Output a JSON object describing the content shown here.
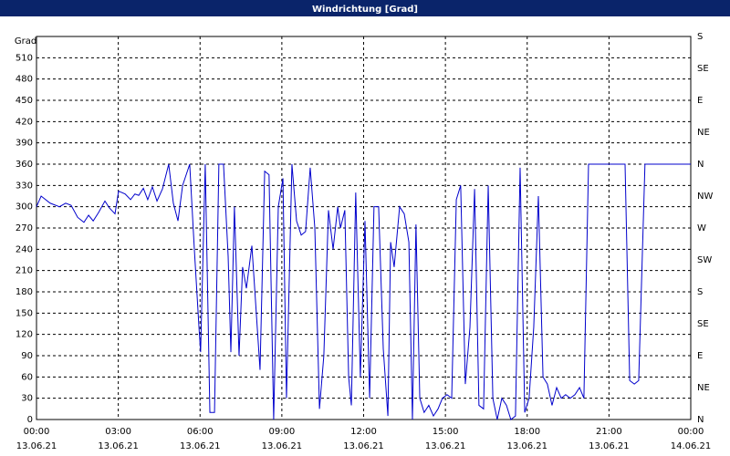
{
  "chart_data": {
    "type": "line",
    "title": "Windrichtung [Grad]",
    "y_label": "Grad",
    "x": [
      0,
      0.17,
      0.5,
      0.84,
      1.07,
      1.27,
      1.51,
      1.74,
      1.91,
      2.08,
      2.28,
      2.51,
      2.68,
      2.88,
      3.01,
      3.25,
      3.45,
      3.61,
      3.75,
      3.92,
      4.08,
      4.25,
      4.42,
      4.62,
      4.85,
      5.02,
      5.19,
      5.36,
      5.62,
      5.79,
      5.96,
      6.02,
      6.19,
      6.36,
      6.53,
      6.69,
      6.86,
      7.03,
      7.13,
      7.26,
      7.43,
      7.56,
      7.7,
      7.9,
      8.2,
      8.37,
      8.53,
      8.7,
      8.87,
      9.04,
      9.17,
      9.37,
      9.54,
      9.71,
      9.87,
      10.04,
      10.21,
      10.38,
      10.54,
      10.71,
      10.88,
      11.05,
      11.15,
      11.31,
      11.45,
      11.55,
      11.71,
      11.88,
      12.05,
      12.22,
      12.38,
      12.55,
      12.72,
      12.89,
      12.99,
      13.12,
      13.32,
      13.49,
      13.66,
      13.79,
      13.92,
      14.06,
      14.22,
      14.39,
      14.56,
      14.73,
      14.89,
      15.06,
      15.23,
      15.4,
      15.56,
      15.73,
      15.9,
      16.07,
      16.23,
      16.4,
      16.57,
      16.74,
      16.9,
      17.07,
      17.24,
      17.4,
      17.57,
      17.74,
      17.91,
      18.07,
      18.24,
      18.41,
      18.58,
      18.74,
      18.91,
      19.08,
      19.25,
      19.41,
      19.58,
      19.75,
      19.92,
      20.08,
      20.25,
      21.59,
      21.76,
      21.93,
      22.09,
      22.32,
      24.0
    ],
    "series": [
      {
        "color": "#0000cc",
        "values": [
          300,
          315,
          305,
          300,
          305,
          302,
          285,
          278,
          288,
          280,
          292,
          308,
          298,
          290,
          322,
          318,
          310,
          318,
          316,
          326,
          310,
          328,
          308,
          325,
          360,
          305,
          280,
          330,
          360,
          240,
          130,
          95,
          360,
          10,
          10,
          360,
          360,
          230,
          95,
          300,
          90,
          215,
          185,
          245,
          70,
          350,
          345,
          0,
          300,
          340,
          30,
          360,
          280,
          260,
          265,
          355,
          270,
          15,
          90,
          295,
          240,
          300,
          270,
          295,
          60,
          20,
          320,
          60,
          280,
          30,
          300,
          300,
          100,
          5,
          250,
          215,
          300,
          290,
          250,
          0,
          275,
          30,
          10,
          20,
          5,
          15,
          30,
          35,
          30,
          310,
          330,
          50,
          130,
          325,
          20,
          15,
          330,
          30,
          0,
          30,
          20,
          0,
          5,
          355,
          10,
          30,
          130,
          315,
          60,
          50,
          20,
          45,
          30,
          35,
          30,
          35,
          45,
          30,
          360,
          360,
          55,
          50,
          55,
          360,
          360
        ]
      }
    ],
    "xlim": [
      0,
      24
    ],
    "xticks": [
      {
        "value": 0,
        "label": "00:00"
      },
      {
        "value": 3,
        "label": "03:00"
      },
      {
        "value": 6,
        "label": "06:00"
      },
      {
        "value": 9,
        "label": "09:00"
      },
      {
        "value": 12,
        "label": "12:00"
      },
      {
        "value": 15,
        "label": "15:00"
      },
      {
        "value": 18,
        "label": "18:00"
      },
      {
        "value": 21,
        "label": "21:00"
      },
      {
        "value": 24,
        "label": "00:00"
      }
    ],
    "xtick_dates": [
      "13.06.21",
      "13.06.21",
      "13.06.21",
      "13.06.21",
      "13.06.21",
      "13.06.21",
      "13.06.21",
      "13.06.21",
      "14.06.21"
    ],
    "ylim": [
      0,
      540
    ],
    "yticks": [
      0,
      30,
      60,
      90,
      120,
      150,
      180,
      210,
      240,
      270,
      300,
      330,
      360,
      390,
      420,
      450,
      480,
      510
    ],
    "y2lim": [
      0,
      540
    ],
    "y2ticks": [
      {
        "value": 0,
        "label": "N"
      },
      {
        "value": 45,
        "label": "NE"
      },
      {
        "value": 90,
        "label": "E"
      },
      {
        "value": 135,
        "label": "SE"
      },
      {
        "value": 180,
        "label": "S"
      },
      {
        "value": 225,
        "label": "SW"
      },
      {
        "value": 270,
        "label": "W"
      },
      {
        "value": 315,
        "label": "NW"
      },
      {
        "value": 360,
        "label": "N"
      },
      {
        "value": 405,
        "label": "NE"
      },
      {
        "value": 450,
        "label": "E"
      },
      {
        "value": 495,
        "label": "SE"
      },
      {
        "value": 540,
        "label": "S"
      }
    ],
    "grid": true
  }
}
